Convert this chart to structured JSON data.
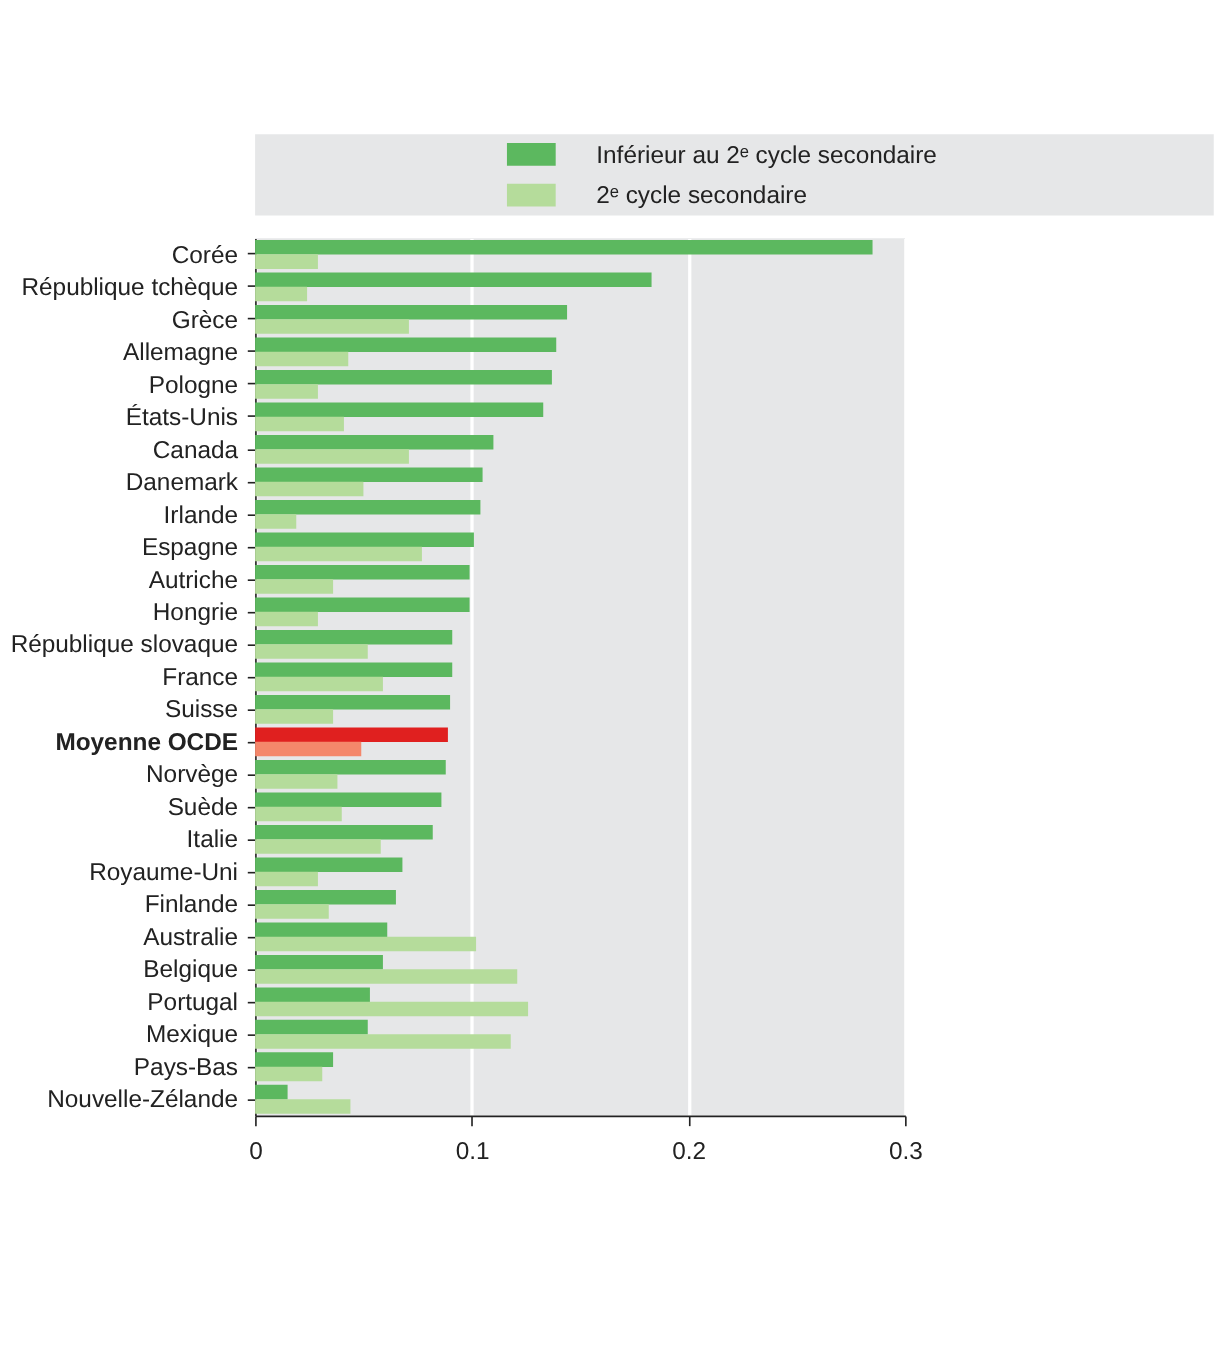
{
  "chart_data": {
    "type": "bar",
    "orientation": "horizontal",
    "legend": "top",
    "grid": "x",
    "categories": [
      "Corée",
      "République tchèque",
      "Grèce",
      "Allemagne",
      "Pologne",
      "États-Unis",
      "Canada",
      "Danemark",
      "Irlande",
      "Espagne",
      "Autriche",
      "Hongrie",
      "République slovaque",
      "France",
      "Suisse",
      "Moyenne OCDE",
      "Norvège",
      "Suède",
      "Italie",
      "Royaume-Uni",
      "Finlande",
      "Australie",
      "Belgique",
      "Portugal",
      "Mexique",
      "Pays-Bas",
      "Nouvelle-Zélande"
    ],
    "series": [
      {
        "name": "Inférieur au 2ᵉ cycle secondaire",
        "color": "#5cb85f",
        "colors": [
          "#5cb85f",
          "#5cb85f",
          "#5cb85f",
          "#5cb85f",
          "#5cb85f",
          "#5cb85f",
          "#5cb85f",
          "#5cb85f",
          "#5cb85f",
          "#5cb85f",
          "#5cb85f",
          "#5cb85f",
          "#5cb85f",
          "#5cb85f",
          "#5cb85f",
          "#e0201f",
          "#5cb85f",
          "#5cb85f",
          "#5cb85f",
          "#5cb85f",
          "#5cb85f",
          "#5cb85f",
          "#5cb85f",
          "#5cb85f",
          "#5cb85f",
          "#5cb85f",
          "#5cb85f"
        ],
        "values": [
          0.285,
          0.183,
          0.144,
          0.139,
          0.137,
          0.133,
          0.11,
          0.105,
          0.104,
          0.101,
          0.099,
          0.099,
          0.091,
          0.091,
          0.09,
          0.089,
          0.088,
          0.086,
          0.082,
          0.068,
          0.065,
          0.061,
          0.059,
          0.053,
          0.052,
          0.036,
          0.015
        ]
      },
      {
        "name": "2ᵉ cycle secondaire",
        "color": "#b5dc9b",
        "colors": [
          "#b5dc9b",
          "#b5dc9b",
          "#b5dc9b",
          "#b5dc9b",
          "#b5dc9b",
          "#b5dc9b",
          "#b5dc9b",
          "#b5dc9b",
          "#b5dc9b",
          "#b5dc9b",
          "#b5dc9b",
          "#b5dc9b",
          "#b5dc9b",
          "#b5dc9b",
          "#b5dc9b",
          "#f4876b",
          "#b5dc9b",
          "#b5dc9b",
          "#b5dc9b",
          "#b5dc9b",
          "#b5dc9b",
          "#b5dc9b",
          "#b5dc9b",
          "#b5dc9b",
          "#b5dc9b",
          "#b5dc9b",
          "#b5dc9b"
        ],
        "values": [
          0.029,
          0.024,
          0.071,
          0.043,
          0.029,
          0.041,
          0.071,
          0.05,
          0.019,
          0.077,
          0.036,
          0.029,
          0.052,
          0.059,
          0.036,
          0.049,
          0.038,
          0.04,
          0.058,
          0.029,
          0.034,
          0.102,
          0.121,
          0.126,
          0.118,
          0.031,
          0.044
        ]
      }
    ],
    "xlim": [
      0,
      0.3
    ],
    "xticks": [
      0,
      0.1,
      0.2,
      0.3
    ]
  }
}
